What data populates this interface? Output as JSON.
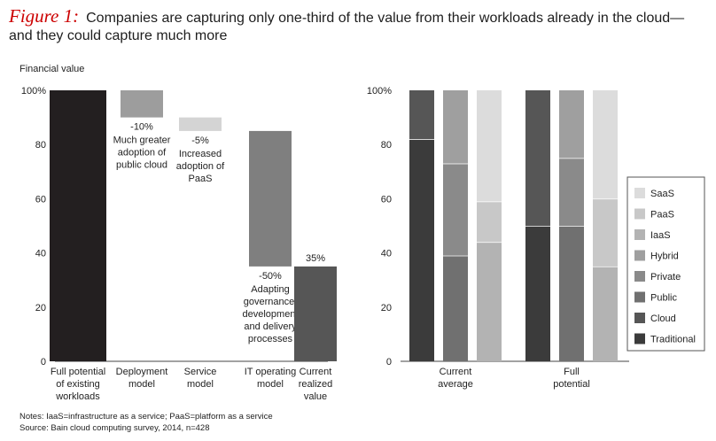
{
  "header": {
    "figure_label": "Figure 1:",
    "title_line1": "Companies are capturing only one-third of the value from their workloads already in the cloud—",
    "title_line2": "and they could capture much more"
  },
  "footer": {
    "notes": "Notes: IaaS=infrastructure as a service; PaaS=platform as a service",
    "source": "Source: Bain cloud computing survey, 2014, n=428"
  },
  "chart_data": [
    {
      "type": "bar",
      "subtype": "waterfall",
      "ylabel": "Financial value",
      "ylim": [
        0,
        100
      ],
      "yticks": [
        "0",
        "20",
        "40",
        "60",
        "80",
        "100%"
      ],
      "categories": [
        [
          "Full potential",
          "of existing",
          "workloads"
        ],
        [
          "Deployment",
          "model"
        ],
        [
          "Service",
          "model"
        ],
        [
          "IT operating",
          "model"
        ],
        [
          "Current",
          "realized",
          "value"
        ]
      ],
      "steps": [
        {
          "kind": "total",
          "value": 100,
          "color": "#231f20"
        },
        {
          "kind": "delta",
          "value": -10,
          "value_label": "-10%",
          "note": [
            "Much greater",
            "adoption of",
            "public cloud"
          ],
          "color": "#9d9d9d"
        },
        {
          "kind": "delta",
          "value": -5,
          "value_label": "-5%",
          "note": [
            "Increased",
            "adoption of",
            "PaaS"
          ],
          "color": "#d4d4d4"
        },
        {
          "kind": "delta",
          "value": -50,
          "value_label": "-50%",
          "note": [
            "Adapting",
            "governance,",
            "development",
            "and delivery",
            "processes"
          ],
          "color": "#7f7f7f"
        },
        {
          "kind": "total",
          "value": 35,
          "value_label": "35%",
          "color": "#565656"
        }
      ]
    },
    {
      "type": "bar",
      "subtype": "stacked-100",
      "ylim": [
        0,
        100
      ],
      "yticks": [
        "0",
        "20",
        "40",
        "60",
        "80",
        "100%"
      ],
      "groups": [
        {
          "label": [
            "Current",
            "average"
          ],
          "bars": [
            {
              "segments": [
                {
                  "name": "Traditional",
                  "value": 82
                },
                {
                  "name": "Cloud",
                  "value": 18
                }
              ]
            },
            {
              "segments": [
                {
                  "name": "Public",
                  "value": 39
                },
                {
                  "name": "Private",
                  "value": 34
                },
                {
                  "name": "Hybrid",
                  "value": 27
                }
              ]
            },
            {
              "segments": [
                {
                  "name": "IaaS",
                  "value": 44
                },
                {
                  "name": "PaaS",
                  "value": 15
                },
                {
                  "name": "SaaS",
                  "value": 41
                }
              ]
            }
          ]
        },
        {
          "label": [
            "Full",
            "potential"
          ],
          "bars": [
            {
              "segments": [
                {
                  "name": "Traditional",
                  "value": 50
                },
                {
                  "name": "Cloud",
                  "value": 50
                }
              ]
            },
            {
              "segments": [
                {
                  "name": "Public",
                  "value": 50
                },
                {
                  "name": "Private",
                  "value": 25
                },
                {
                  "name": "Hybrid",
                  "value": 25
                }
              ]
            },
            {
              "segments": [
                {
                  "name": "IaaS",
                  "value": 35
                },
                {
                  "name": "PaaS",
                  "value": 25
                },
                {
                  "name": "SaaS",
                  "value": 40
                }
              ]
            }
          ]
        }
      ],
      "legend_position": "right",
      "legend": [
        {
          "name": "SaaS",
          "color": "#dcdcdc"
        },
        {
          "name": "PaaS",
          "color": "#c8c8c8"
        },
        {
          "name": "IaaS",
          "color": "#b3b3b3"
        },
        {
          "name": "Hybrid",
          "color": "#9f9f9f"
        },
        {
          "name": "Private",
          "color": "#8a8a8a"
        },
        {
          "name": "Public",
          "color": "#707070"
        },
        {
          "name": "Cloud",
          "color": "#565656"
        },
        {
          "name": "Traditional",
          "color": "#3b3b3b"
        }
      ]
    }
  ]
}
